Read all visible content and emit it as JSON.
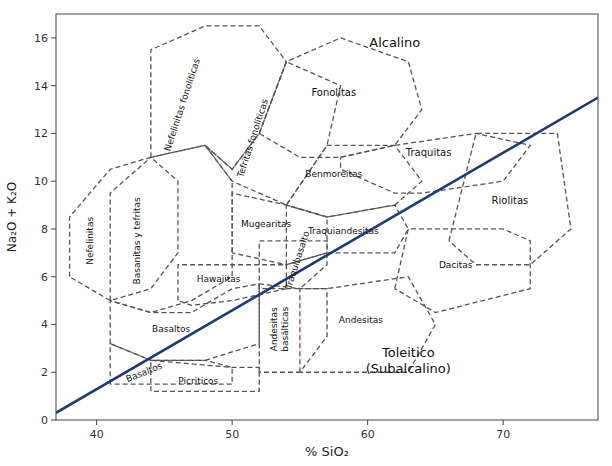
{
  "chart_data": {
    "type": "classification",
    "xlabel": "% SiO₂",
    "ylabel": "Na₂O + K₂O",
    "xlim": [
      37,
      77
    ],
    "ylim": [
      0,
      17
    ],
    "xticks": [
      40,
      50,
      60,
      70
    ],
    "yticks": [
      0,
      2,
      4,
      6,
      8,
      10,
      12,
      14,
      16
    ],
    "dividing_line": [
      [
        37,
        0.3
      ],
      [
        77,
        13.5
      ]
    ],
    "regions": [
      {
        "name": "Nefelinitas",
        "polygon": [
          [
            38,
            6
          ],
          [
            38,
            8.5
          ],
          [
            41,
            10.5
          ],
          [
            44,
            11
          ],
          [
            46,
            10
          ],
          [
            46,
            7
          ],
          [
            44,
            5.5
          ],
          [
            41,
            5
          ],
          [
            38,
            6
          ]
        ],
        "label_x": 39.5,
        "label_y": 7.5
      },
      {
        "name": "Basanitas y tefritas",
        "polygon": [
          [
            41,
            5
          ],
          [
            41,
            9.5
          ],
          [
            44,
            11
          ],
          [
            48,
            11.5
          ],
          [
            50,
            10
          ],
          [
            50,
            6
          ],
          [
            47,
            5
          ],
          [
            44,
            4.5
          ],
          [
            41,
            5
          ]
        ],
        "label_x": 43.0,
        "label_y": 7.5
      },
      {
        "name": "Nefelinitas fonolíticas",
        "polygon": [
          [
            44,
            11
          ],
          [
            44,
            15.5
          ],
          [
            48,
            16.5
          ],
          [
            52,
            16.5
          ],
          [
            54,
            15
          ],
          [
            52,
            12
          ],
          [
            50,
            10.5
          ],
          [
            48,
            11.5
          ],
          [
            44,
            11
          ]
        ],
        "label_x": 46.3,
        "label_y": 13.2
      },
      {
        "name": "Tefritas fonolíticas",
        "polygon": [
          [
            48,
            11.5
          ],
          [
            50,
            10.5
          ],
          [
            52,
            12
          ],
          [
            54,
            15
          ],
          [
            58,
            14
          ],
          [
            57,
            11.5
          ],
          [
            54,
            9
          ],
          [
            52,
            9.5
          ],
          [
            50,
            10
          ],
          [
            48,
            11.5
          ]
        ],
        "label_x": 51.5,
        "label_y": 11.8
      },
      {
        "name": "Basaltos",
        "polygon": [
          [
            41,
            3.2
          ],
          [
            41,
            5.0
          ],
          [
            44,
            4.5
          ],
          [
            47,
            4.5
          ],
          [
            50,
            5.5
          ],
          [
            52,
            5.7
          ],
          [
            52,
            3.2
          ],
          [
            48,
            2.5
          ],
          [
            44,
            2.5
          ],
          [
            41,
            3.2
          ]
        ],
        "label_x": 45.5,
        "label_y": 3.8
      },
      {
        "name": "Basaltos",
        "polygon": [
          [
            41,
            1.5
          ],
          [
            41,
            3.2
          ],
          [
            44,
            2.5
          ],
          [
            48,
            2.5
          ],
          [
            50,
            2.2
          ],
          [
            50,
            1.5
          ],
          [
            41,
            1.5
          ]
        ],
        "label_x": 43.5,
        "label_y": 2.0
      },
      {
        "name": "Picriticos",
        "polygon": [
          [
            44,
            1.2
          ],
          [
            44,
            2.5
          ],
          [
            50,
            2.2
          ],
          [
            52,
            2.2
          ],
          [
            52,
            1.2
          ],
          [
            44,
            1.2
          ]
        ],
        "label_x": 47.5,
        "label_y": 1.65
      },
      {
        "name": "Hawaiitas",
        "polygon": [
          [
            46,
            5
          ],
          [
            46,
            6.5
          ],
          [
            50,
            6.5
          ],
          [
            54,
            6.5
          ],
          [
            54,
            5.5
          ],
          [
            50,
            5.0
          ],
          [
            47,
            4.8
          ],
          [
            46,
            5
          ]
        ],
        "label_x": 49.0,
        "label_y": 5.9
      },
      {
        "name": "Mugearitas",
        "polygon": [
          [
            50,
            7
          ],
          [
            50,
            9.5
          ],
          [
            54,
            9
          ],
          [
            57,
            8.5
          ],
          [
            57,
            7
          ],
          [
            54,
            6.5
          ],
          [
            50,
            7
          ]
        ],
        "label_x": 52.5,
        "label_y": 8.2
      },
      {
        "name": "Traquibasalto",
        "polygon": [
          [
            52,
            5.5
          ],
          [
            52,
            7.5
          ],
          [
            57,
            7.5
          ],
          [
            57,
            6.5
          ],
          [
            55,
            5.5
          ],
          [
            52,
            5.5
          ]
        ],
        "label_x": 54.8,
        "label_y": 6.7
      },
      {
        "name": "Fonolitas",
        "polygon": [
          [
            52,
            12
          ],
          [
            54,
            15
          ],
          [
            58,
            16
          ],
          [
            63,
            15
          ],
          [
            64,
            13
          ],
          [
            62,
            11.5
          ],
          [
            58,
            11
          ],
          [
            55,
            11
          ],
          [
            52,
            12
          ]
        ],
        "label_x": 57.5,
        "label_y": 13.7
      },
      {
        "name": "Benmoreitas",
        "polygon": [
          [
            54,
            9
          ],
          [
            57,
            11.5
          ],
          [
            62,
            11.5
          ],
          [
            64,
            10
          ],
          [
            62,
            9
          ],
          [
            57,
            8.5
          ],
          [
            54,
            9
          ]
        ],
        "label_x": 57.5,
        "label_y": 10.3
      },
      {
        "name": "Traquiandesitas",
        "polygon": [
          [
            54,
            6.5
          ],
          [
            54,
            9
          ],
          [
            57,
            8.5
          ],
          [
            62,
            9
          ],
          [
            63,
            8
          ],
          [
            62,
            7
          ],
          [
            57,
            7.0
          ],
          [
            54,
            6.5
          ]
        ],
        "label_x": 58.2,
        "label_y": 7.9
      },
      {
        "name": "Traquitas",
        "polygon": [
          [
            58,
            11
          ],
          [
            62,
            11.5
          ],
          [
            68,
            12
          ],
          [
            72,
            11.5
          ],
          [
            70,
            10
          ],
          [
            64,
            9.5
          ],
          [
            62,
            9.5
          ],
          [
            58,
            10.5
          ],
          [
            58,
            11
          ]
        ],
        "label_x": 64.5,
        "label_y": 11.2
      },
      {
        "name": "Andesitas\nbasálticas",
        "polygon": [
          [
            52,
            2.0
          ],
          [
            52,
            5.7
          ],
          [
            55,
            5.5
          ],
          [
            57,
            5.5
          ],
          [
            57,
            3.5
          ],
          [
            55,
            2.0
          ],
          [
            52,
            2.0
          ]
        ],
        "label_x": 53.5,
        "label_y": 3.8
      },
      {
        "name": "Andesitas",
        "polygon": [
          [
            55,
            2.0
          ],
          [
            55,
            5.5
          ],
          [
            57,
            5.5
          ],
          [
            63,
            6
          ],
          [
            65,
            4
          ],
          [
            63,
            2.0
          ],
          [
            55,
            2.0
          ]
        ],
        "label_x": 59.5,
        "label_y": 4.2
      },
      {
        "name": "Dacitas",
        "polygon": [
          [
            62,
            5.5
          ],
          [
            63,
            8
          ],
          [
            70,
            8
          ],
          [
            72,
            7.5
          ],
          [
            72,
            5.5
          ],
          [
            65,
            4.5
          ],
          [
            62,
            5.5
          ]
        ],
        "label_x": 66.5,
        "label_y": 6.5
      },
      {
        "name": "Riolitas",
        "polygon": [
          [
            66,
            7.5
          ],
          [
            68,
            12
          ],
          [
            74,
            12
          ],
          [
            75,
            8
          ],
          [
            72,
            6.5
          ],
          [
            68,
            6.5
          ],
          [
            66,
            7.5
          ]
        ],
        "label_x": 70.5,
        "label_y": 9.2
      }
    ],
    "annotations": [
      {
        "text": "Alcalino",
        "x": 62,
        "y": 15.8
      },
      {
        "text": "Toleitico\n(Subalcalino)",
        "x": 63,
        "y": 2.5
      }
    ]
  }
}
